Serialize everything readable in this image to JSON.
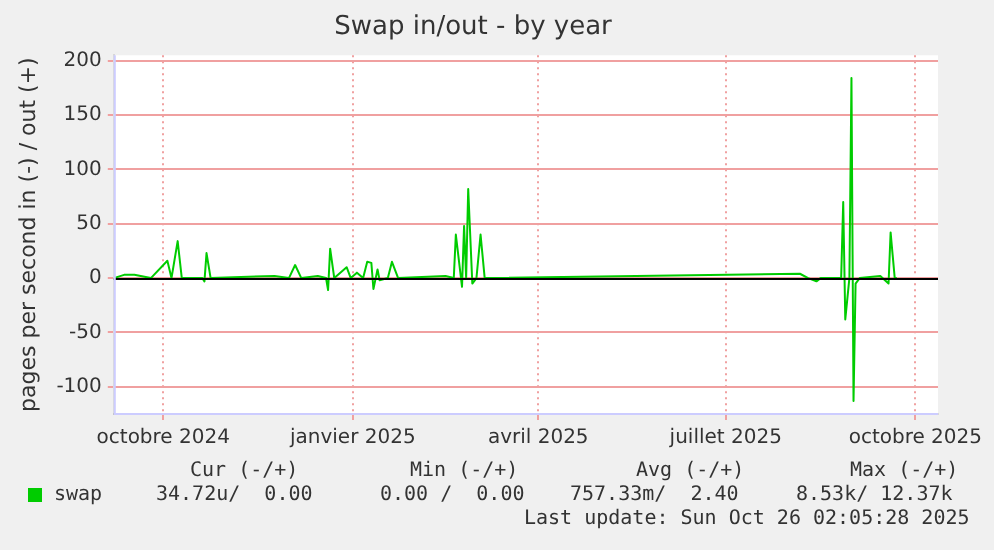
{
  "chart_data": {
    "type": "line",
    "title": "Swap in/out - by year",
    "ylabel": "pages per second in (-) / out (+)",
    "x": [
      "2024-09-21",
      "2024-09-26",
      "2024-10-01",
      "2024-10-09",
      "2024-10-17",
      "2024-10-19",
      "2024-10-22",
      "2024-10-24",
      "2024-11-03",
      "2024-11-04",
      "2024-11-05",
      "2024-11-07",
      "2024-12-08",
      "2024-12-15",
      "2024-12-18",
      "2024-12-21",
      "2024-12-29",
      "2025-01-02",
      "2025-01-03",
      "2025-01-04",
      "2025-01-06",
      "2025-01-12",
      "2025-01-14",
      "2025-01-17",
      "2025-01-20",
      "2025-01-22",
      "2025-01-24",
      "2025-01-25",
      "2025-01-27",
      "2025-01-28",
      "2025-02-01",
      "2025-02-03",
      "2025-02-06",
      "2025-03-01",
      "2025-03-05",
      "2025-03-06",
      "2025-03-09",
      "2025-03-10",
      "2025-03-11",
      "2025-03-12",
      "2025-03-14",
      "2025-03-16",
      "2025-03-18",
      "2025-03-20",
      "2025-08-20",
      "2025-08-24",
      "2025-08-28",
      "2025-08-30",
      "2025-09-09",
      "2025-09-10",
      "2025-09-11",
      "2025-09-13",
      "2025-09-14",
      "2025-09-15",
      "2025-09-16",
      "2025-09-18",
      "2025-09-28",
      "2025-10-02",
      "2025-10-03",
      "2025-10-05",
      "2025-10-06"
    ],
    "series": [
      {
        "name": "swap",
        "color": "#00cc00",
        "values": [
          0,
          3,
          3,
          0,
          16,
          0,
          34,
          0,
          0,
          -3,
          23,
          0,
          2,
          0,
          12,
          0,
          2,
          0,
          -11,
          27,
          0,
          10,
          0,
          5,
          0,
          15,
          14,
          -10,
          8,
          -2,
          0,
          15,
          0,
          2,
          0,
          40,
          -8,
          48,
          0,
          82,
          -5,
          0,
          40,
          0,
          4,
          0,
          -3,
          0,
          0,
          70,
          -38,
          0,
          184,
          -113,
          -5,
          0,
          2,
          -5,
          42,
          0,
          0
        ]
      }
    ],
    "xlim": [
      "2024-09-21",
      "2025-10-26"
    ],
    "xticks": [
      {
        "value": "2024-10-15",
        "label": "octobre 2024"
      },
      {
        "value": "2025-01-15",
        "label": "janvier 2025"
      },
      {
        "value": "2025-04-15",
        "label": "avril 2025"
      },
      {
        "value": "2025-07-15",
        "label": "juillet 2025"
      },
      {
        "value": "2025-10-15",
        "label": "octobre 2025"
      }
    ],
    "ylim": [
      -125,
      205
    ],
    "yticks": [
      -100,
      -50,
      0,
      50,
      100,
      150,
      200
    ],
    "grid": true,
    "legend": "bottom left",
    "annotations": [
      "Cur (-/+)",
      "Min (-/+)",
      "Avg (-/+)",
      "Max (-/+)",
      "34.72u/  0.00",
      "0.00 /  0.00",
      "757.33m/  2.40",
      "8.53k/ 12.37k",
      "Last update: Sun Oct 26 02:05:28 2025"
    ]
  }
}
